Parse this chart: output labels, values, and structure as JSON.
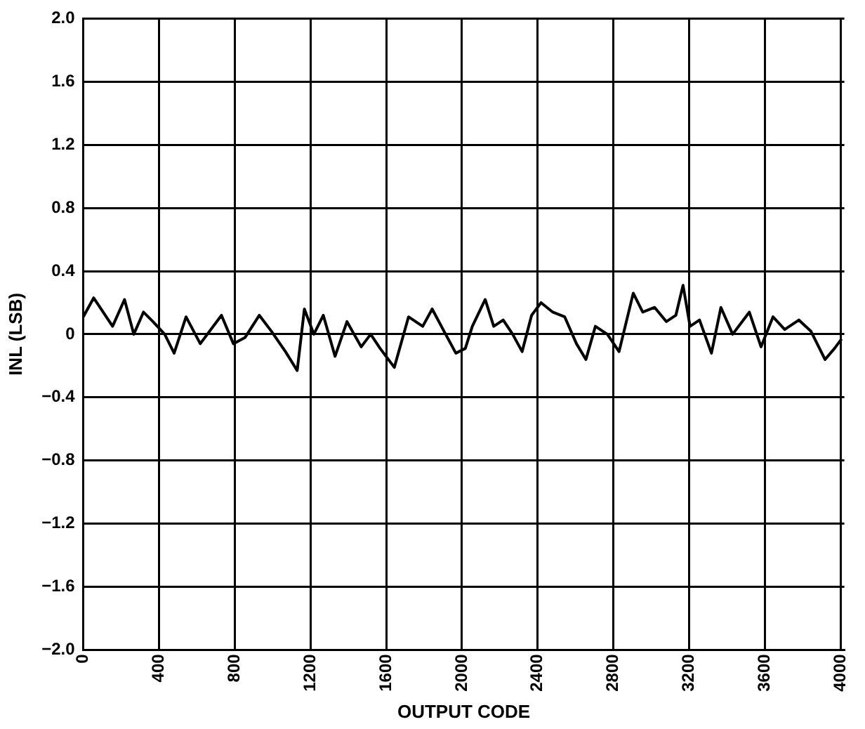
{
  "chart_data": {
    "type": "line",
    "xlabel": "OUTPUT CODE",
    "ylabel": "INL (LSB)",
    "x": [
      0,
      55,
      105,
      155,
      218,
      267,
      318,
      368,
      430,
      480,
      543,
      618,
      730,
      793,
      855,
      930,
      993,
      1068,
      1130,
      1168,
      1218,
      1268,
      1330,
      1393,
      1468,
      1518,
      1568,
      1643,
      1718,
      1793,
      1843,
      1905,
      1968,
      2018,
      2055,
      2123,
      2168,
      2218,
      2268,
      2318,
      2368,
      2418,
      2480,
      2543,
      2605,
      2655,
      2705,
      2768,
      2830,
      2905,
      2955,
      3018,
      3080,
      3130,
      3168,
      3205,
      3255,
      3318,
      3368,
      3430,
      3518,
      3580,
      3643,
      3705,
      3780,
      3843,
      3918,
      3968,
      4005
    ],
    "series": [
      {
        "color": "#000000",
        "values": [
          0.11,
          0.23,
          0.14,
          0.05,
          0.22,
          0,
          0.14,
          0.08,
          0,
          -0.12,
          0.11,
          -0.06,
          0.12,
          -0.06,
          -0.02,
          0.12,
          0.02,
          -0.11,
          -0.23,
          0.16,
          0,
          0.12,
          -0.14,
          0.08,
          -0.08,
          0,
          -0.09,
          -0.21,
          0.11,
          0.05,
          0.16,
          0.02,
          -0.12,
          -0.09,
          0.05,
          0.22,
          0.05,
          0.09,
          0,
          -0.11,
          0.12,
          0.2,
          0.14,
          0.11,
          -0.06,
          -0.16,
          0.05,
          0,
          -0.11,
          0.26,
          0.14,
          0.17,
          0.08,
          0.12,
          0.31,
          0.05,
          0.09,
          -0.12,
          0.17,
          0,
          0.14,
          -0.08,
          0.11,
          0.03,
          0.09,
          0.02,
          -0.16,
          -0.09,
          -0.03
        ]
      }
    ],
    "xlim": [
      0,
      4020
    ],
    "ylim": [
      -2,
      2
    ],
    "xticks": [
      0,
      400,
      800,
      1200,
      1600,
      2000,
      2400,
      2800,
      3200,
      3600,
      4000
    ],
    "yticks": [
      {
        "value": -2,
        "label": "−2.0"
      },
      {
        "value": -1.6,
        "label": "−1.6"
      },
      {
        "value": -1.2,
        "label": "−1.2"
      },
      {
        "value": -0.8,
        "label": "−0.8"
      },
      {
        "value": -0.4,
        "label": "−0.4"
      },
      0,
      {
        "value": 0.4,
        "label": "0.4"
      },
      {
        "value": 0.8,
        "label": "0.8"
      },
      {
        "value": 1.2,
        "label": "1.2"
      },
      {
        "value": 1.6,
        "label": "1.6"
      },
      {
        "value": 2,
        "label": "2.0"
      }
    ],
    "grid": true,
    "legend": false,
    "marker": "none",
    "line_style": "solid"
  }
}
